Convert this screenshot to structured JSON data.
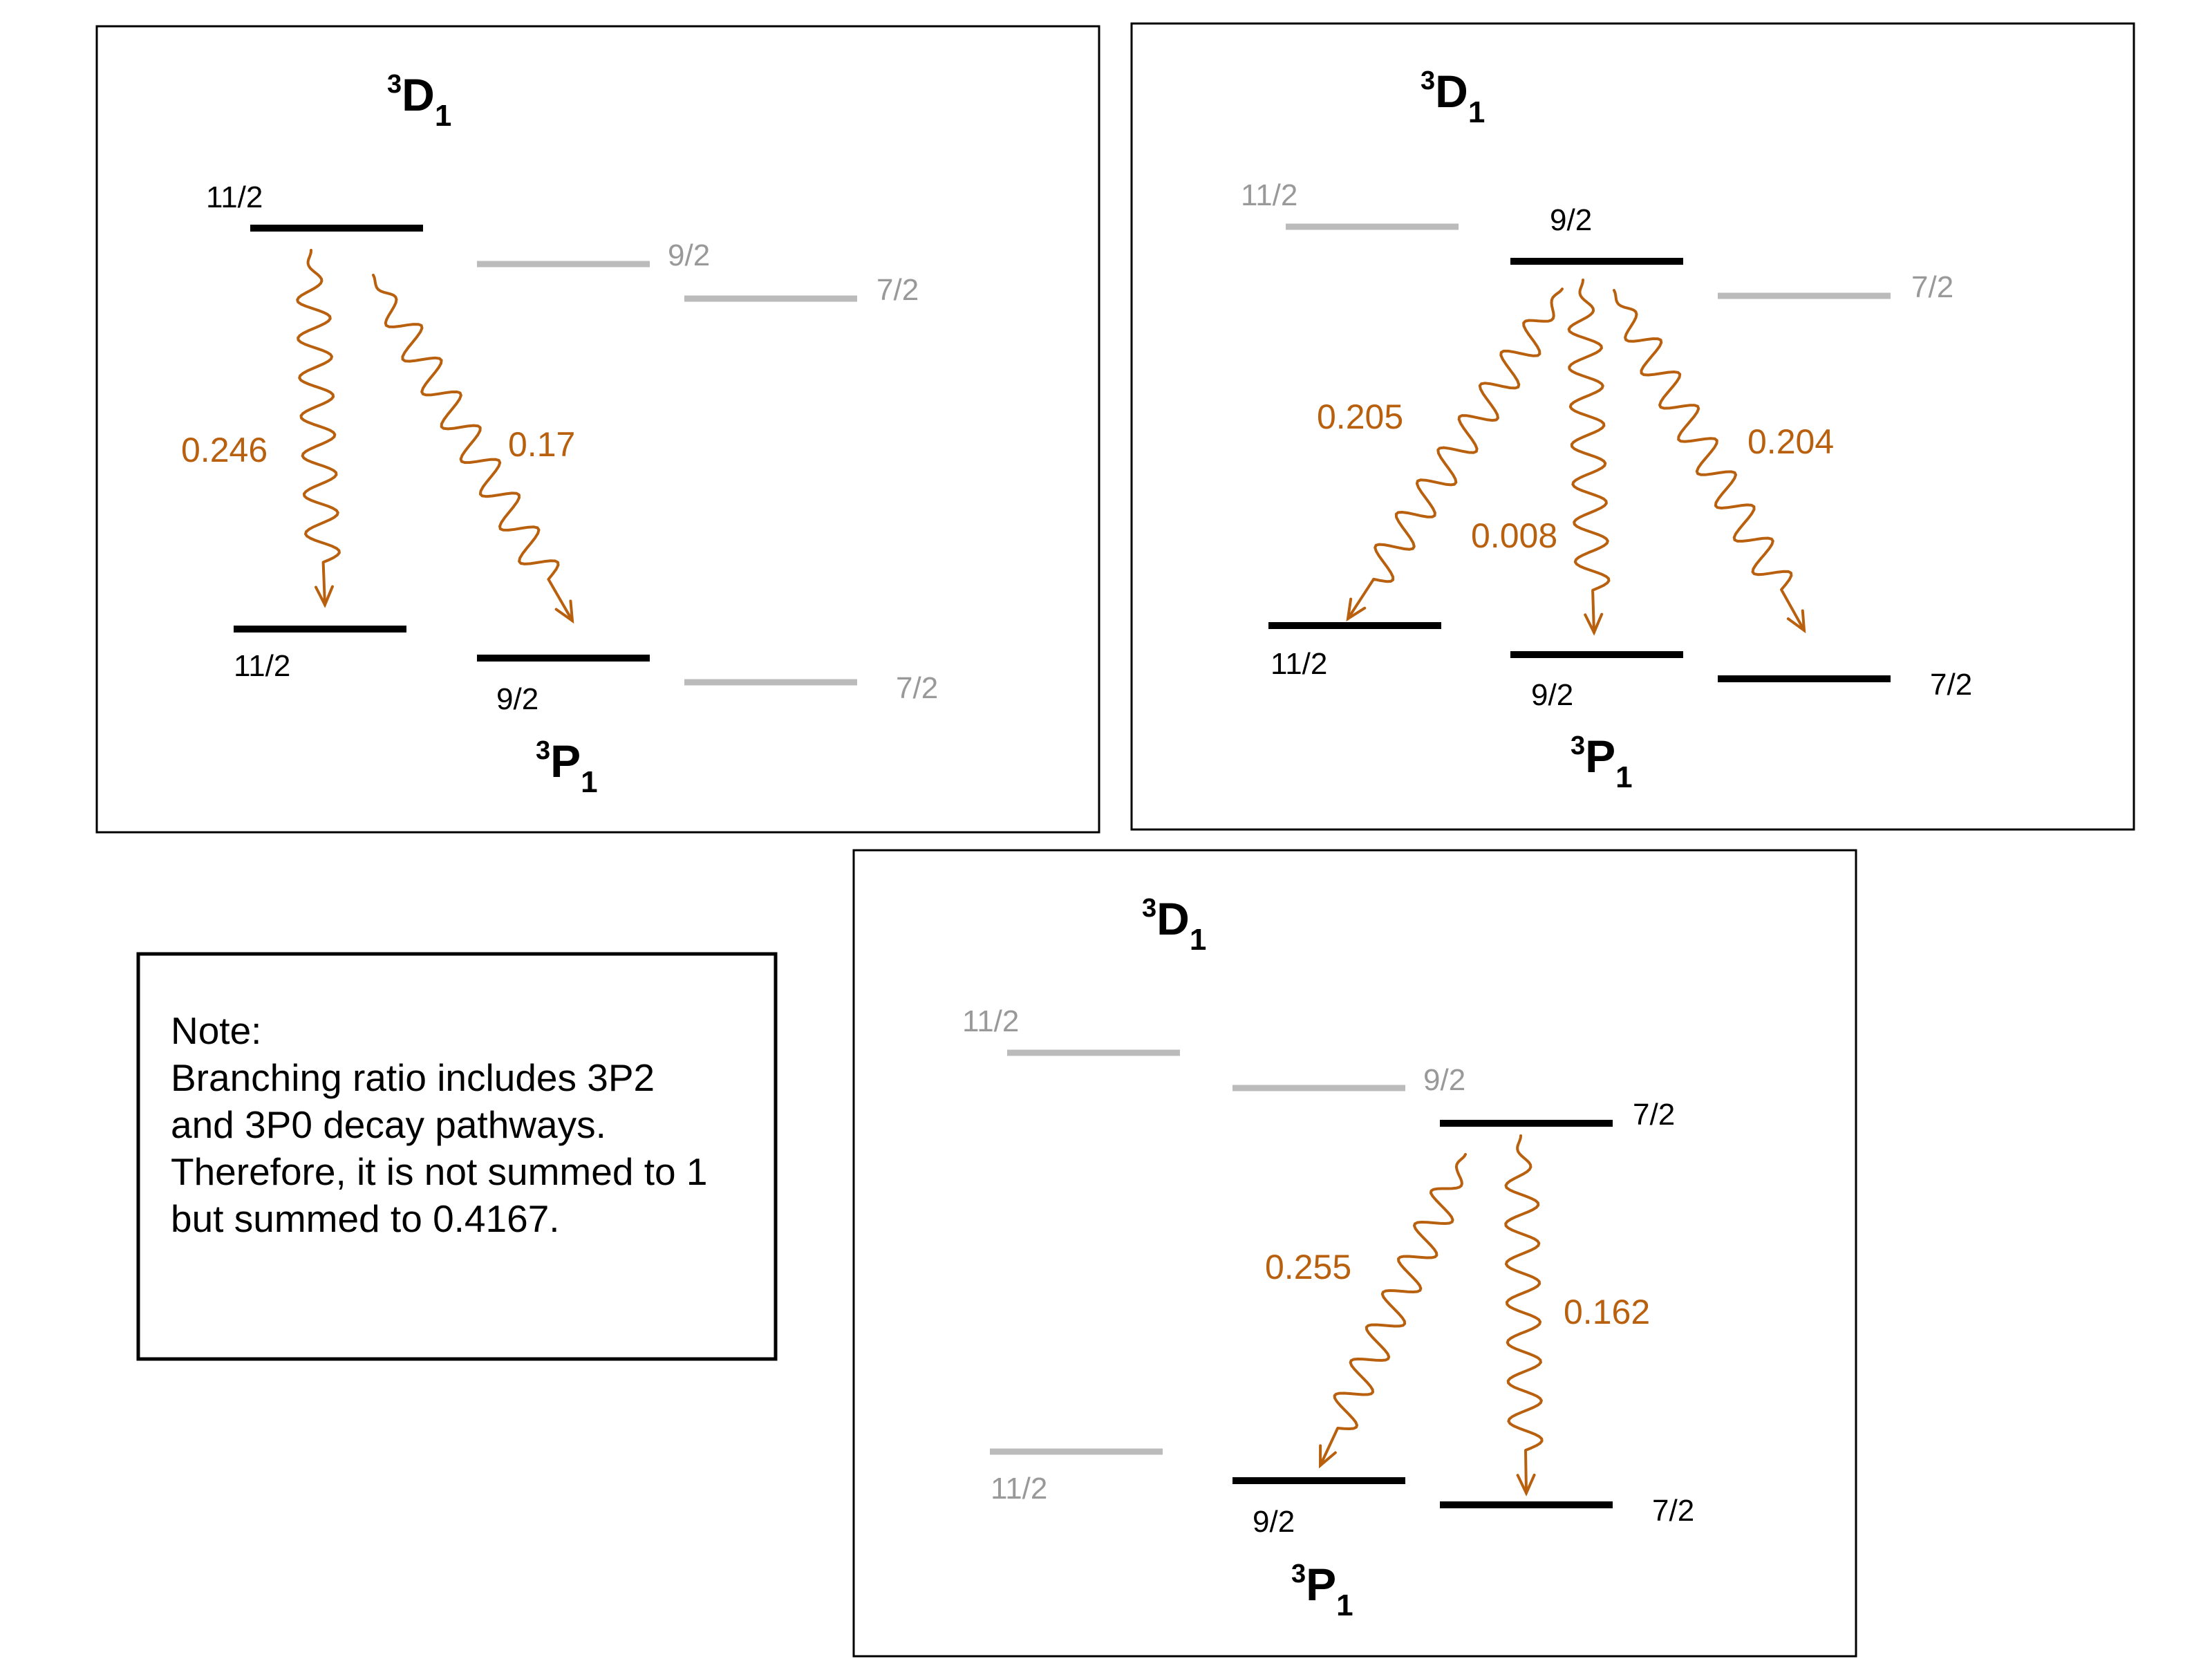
{
  "colors": {
    "active_level": "#000000",
    "inactive_level": "#bbbbbb",
    "inactive_text": "#999999",
    "decay_arrow": "#b8600e",
    "frame": "#000000"
  },
  "panels": [
    {
      "upper_term": {
        "sup": "3",
        "letter": "D",
        "sub": "1"
      },
      "lower_term": {
        "sup": "3",
        "letter": "P",
        "sub": "1"
      },
      "upper_levels": [
        {
          "label": "11/2",
          "active": true
        },
        {
          "label": "9/2",
          "active": false
        },
        {
          "label": "7/2",
          "active": false
        }
      ],
      "lower_levels": [
        {
          "label": "11/2",
          "active": true
        },
        {
          "label": "9/2",
          "active": true
        },
        {
          "label": "7/2",
          "active": false
        }
      ],
      "decays": [
        {
          "from": "11/2",
          "to": "11/2",
          "ratio": "0.246"
        },
        {
          "from": "11/2",
          "to": "9/2",
          "ratio": "0.17"
        }
      ]
    },
    {
      "upper_term": {
        "sup": "3",
        "letter": "D",
        "sub": "1"
      },
      "lower_term": {
        "sup": "3",
        "letter": "P",
        "sub": "1"
      },
      "upper_levels": [
        {
          "label": "11/2",
          "active": false
        },
        {
          "label": "9/2",
          "active": true
        },
        {
          "label": "7/2",
          "active": false
        }
      ],
      "lower_levels": [
        {
          "label": "11/2",
          "active": true
        },
        {
          "label": "9/2",
          "active": true
        },
        {
          "label": "7/2",
          "active": true
        }
      ],
      "decays": [
        {
          "from": "9/2",
          "to": "11/2",
          "ratio": "0.205"
        },
        {
          "from": "9/2",
          "to": "9/2",
          "ratio": "0.008"
        },
        {
          "from": "9/2",
          "to": "7/2",
          "ratio": "0.204"
        }
      ]
    },
    {
      "upper_term": {
        "sup": "3",
        "letter": "D",
        "sub": "1"
      },
      "lower_term": {
        "sup": "3",
        "letter": "P",
        "sub": "1"
      },
      "upper_levels": [
        {
          "label": "11/2",
          "active": false
        },
        {
          "label": "9/2",
          "active": false
        },
        {
          "label": "7/2",
          "active": true
        }
      ],
      "lower_levels": [
        {
          "label": "11/2",
          "active": false
        },
        {
          "label": "9/2",
          "active": true
        },
        {
          "label": "7/2",
          "active": true
        }
      ],
      "decays": [
        {
          "from": "7/2",
          "to": "9/2",
          "ratio": "0.255"
        },
        {
          "from": "7/2",
          "to": "7/2",
          "ratio": "0.162"
        }
      ]
    }
  ],
  "note": {
    "lines": [
      "Note:",
      "Branching ratio includes 3P2",
      "and 3P0 decay pathways.",
      "Therefore, it is not summed to 1",
      "but summed to 0.4167."
    ]
  }
}
